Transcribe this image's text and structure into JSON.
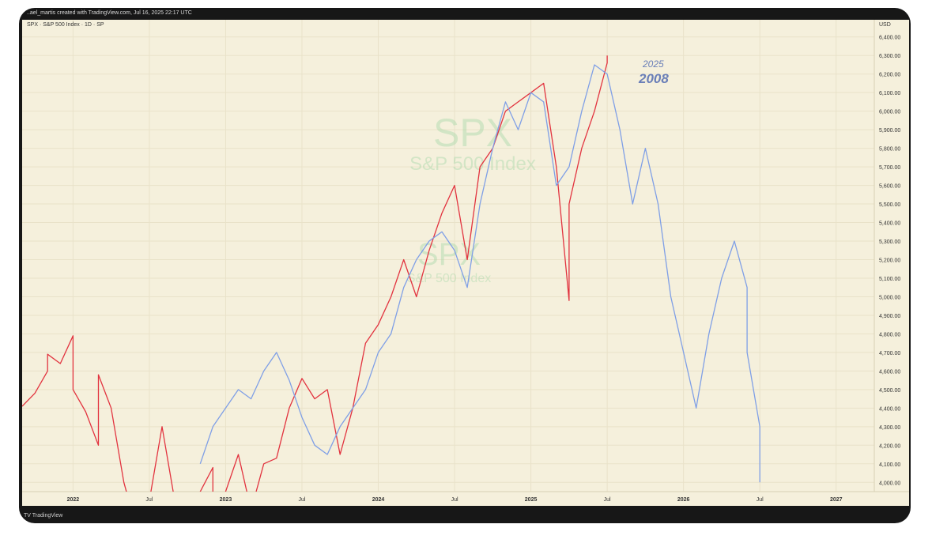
{
  "header": {
    "caption": "..ael_martis created with TradingView.com, Jul 16, 2025 22:17 UTC"
  },
  "symbol_line": "SPX · S&P 500 Index · 1D · SP",
  "footer": {
    "brand": "TV TradingView"
  },
  "colors": {
    "background": "#f5f0dc",
    "series_2025": "#e2333f",
    "series_2008": "#7f9fe6",
    "grid": "#e9e2c9",
    "watermark": "#a8d8a8"
  },
  "chart_data": {
    "type": "line",
    "currency_label": "USD",
    "ylim": [
      3950,
      6450
    ],
    "xlim": [
      "2021-09",
      "2027-04"
    ],
    "y_ticks": [
      "6,400.00",
      "6,300.00",
      "6,200.00",
      "6,100.00",
      "6,000.00",
      "5,900.00",
      "5,800.00",
      "5,700.00",
      "5,600.00",
      "5,500.00",
      "5,400.00",
      "5,300.00",
      "5,200.00",
      "5,100.00",
      "5,000.00",
      "4,900.00",
      "4,800.00",
      "4,700.00",
      "4,600.00",
      "4,500.00",
      "4,400.00",
      "4,300.00",
      "4,200.00",
      "4,100.00",
      "4,000.00"
    ],
    "x_ticks": [
      {
        "label": "2022",
        "pos": "2022-01",
        "bold": true
      },
      {
        "label": "Jul",
        "pos": "2022-07",
        "bold": false
      },
      {
        "label": "2023",
        "pos": "2023-01",
        "bold": true
      },
      {
        "label": "Jul",
        "pos": "2023-07",
        "bold": false
      },
      {
        "label": "2024",
        "pos": "2024-01",
        "bold": true
      },
      {
        "label": "Jul",
        "pos": "2024-07",
        "bold": false
      },
      {
        "label": "2025",
        "pos": "2025-01",
        "bold": true
      },
      {
        "label": "Jul",
        "pos": "2025-07",
        "bold": false
      },
      {
        "label": "2026",
        "pos": "2026-01",
        "bold": true
      },
      {
        "label": "Jul",
        "pos": "2026-07",
        "bold": false
      },
      {
        "label": "2027",
        "pos": "2027-01",
        "bold": true
      }
    ],
    "watermarks": [
      {
        "title": "SPX",
        "subtitle": "S&P 500 Index"
      },
      {
        "title": "SPX",
        "subtitle": "S&P 500 Index"
      }
    ],
    "series": [
      {
        "name": "2025",
        "color": "#e2333f",
        "points": [
          [
            "2021-09",
            4410
          ],
          [
            "2021-10",
            4480
          ],
          [
            "2021-11",
            4600
          ],
          [
            "2021-11",
            4690
          ],
          [
            "2021-12",
            4640
          ],
          [
            "2022-01",
            4790
          ],
          [
            "2022-01",
            4500
          ],
          [
            "2022-02",
            4380
          ],
          [
            "2022-03",
            4200
          ],
          [
            "2022-03",
            4580
          ],
          [
            "2022-04",
            4400
          ],
          [
            "2022-05",
            4000
          ],
          [
            "2022-06",
            3750
          ],
          [
            "2022-07",
            3900
          ],
          [
            "2022-08",
            4300
          ],
          [
            "2022-09",
            3900
          ],
          [
            "2022-10",
            3600
          ],
          [
            "2022-11",
            3950
          ],
          [
            "2022-12",
            4080
          ],
          [
            "2022-12",
            3800
          ],
          [
            "2023-01",
            3950
          ],
          [
            "2023-02",
            4150
          ],
          [
            "2023-03",
            3850
          ],
          [
            "2023-04",
            4100
          ],
          [
            "2023-05",
            4130
          ],
          [
            "2023-06",
            4400
          ],
          [
            "2023-07",
            4560
          ],
          [
            "2023-08",
            4450
          ],
          [
            "2023-09",
            4500
          ],
          [
            "2023-10",
            4150
          ],
          [
            "2023-11",
            4400
          ],
          [
            "2023-12",
            4750
          ],
          [
            "2024-01",
            4850
          ],
          [
            "2024-02",
            5000
          ],
          [
            "2024-03",
            5200
          ],
          [
            "2024-04",
            5000
          ],
          [
            "2024-05",
            5250
          ],
          [
            "2024-06",
            5450
          ],
          [
            "2024-07",
            5600
          ],
          [
            "2024-08",
            5200
          ],
          [
            "2024-09",
            5700
          ],
          [
            "2024-10",
            5800
          ],
          [
            "2024-11",
            6000
          ],
          [
            "2024-12",
            6050
          ],
          [
            "2025-01",
            6100
          ],
          [
            "2025-02",
            6150
          ],
          [
            "2025-03",
            5700
          ],
          [
            "2025-04",
            4980
          ],
          [
            "2025-04",
            5500
          ],
          [
            "2025-05",
            5800
          ],
          [
            "2025-06",
            6000
          ],
          [
            "2025-07",
            6260
          ],
          [
            "2025-07",
            6300
          ]
        ]
      },
      {
        "name": "2008",
        "color": "#7f9fe6",
        "points": [
          [
            "2022-11",
            4100
          ],
          [
            "2022-12",
            4300
          ],
          [
            "2023-01",
            4400
          ],
          [
            "2023-02",
            4500
          ],
          [
            "2023-03",
            4450
          ],
          [
            "2023-04",
            4600
          ],
          [
            "2023-05",
            4700
          ],
          [
            "2023-06",
            4550
          ],
          [
            "2023-07",
            4350
          ],
          [
            "2023-08",
            4200
          ],
          [
            "2023-09",
            4150
          ],
          [
            "2023-10",
            4300
          ],
          [
            "2023-11",
            4400
          ],
          [
            "2023-12",
            4500
          ],
          [
            "2024-01",
            4700
          ],
          [
            "2024-02",
            4800
          ],
          [
            "2024-03",
            5050
          ],
          [
            "2024-04",
            5200
          ],
          [
            "2024-05",
            5300
          ],
          [
            "2024-06",
            5350
          ],
          [
            "2024-07",
            5250
          ],
          [
            "2024-08",
            5050
          ],
          [
            "2024-09",
            5500
          ],
          [
            "2024-10",
            5800
          ],
          [
            "2024-11",
            6050
          ],
          [
            "2024-12",
            5900
          ],
          [
            "2025-01",
            6100
          ],
          [
            "2025-02",
            6050
          ],
          [
            "2025-03",
            5600
          ],
          [
            "2025-04",
            5700
          ],
          [
            "2025-05",
            6000
          ],
          [
            "2025-06",
            6250
          ],
          [
            "2025-07",
            6200
          ],
          [
            "2025-08",
            5900
          ],
          [
            "2025-09",
            5500
          ],
          [
            "2025-10",
            5800
          ],
          [
            "2025-11",
            5500
          ],
          [
            "2025-12",
            5000
          ],
          [
            "2026-01",
            4700
          ],
          [
            "2026-02",
            4400
          ],
          [
            "2026-03",
            4800
          ],
          [
            "2026-04",
            5100
          ],
          [
            "2026-05",
            5300
          ],
          [
            "2026-06",
            5050
          ],
          [
            "2026-06",
            4700
          ],
          [
            "2026-07",
            4300
          ],
          [
            "2026-07",
            4000
          ]
        ]
      }
    ]
  }
}
